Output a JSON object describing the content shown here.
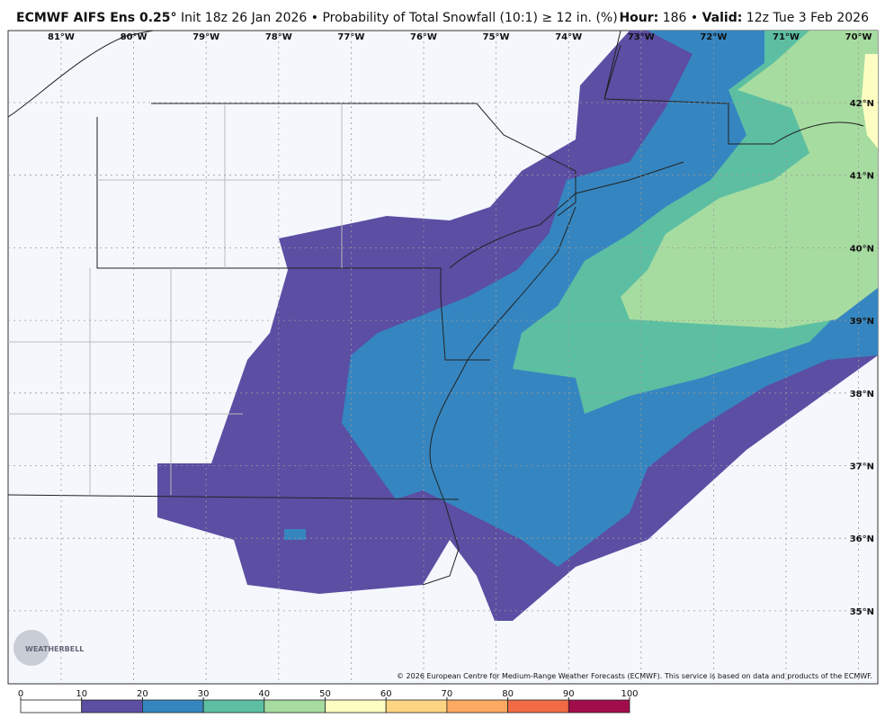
{
  "header": {
    "model": "ECMWF AIFS Ens 0.25°",
    "description": "Init 18z 26 Jan 2026 • Probability of Total Snowfall (10:1) ≥ 12 in. (%)",
    "hour_label": "Hour:",
    "hour": "186 •",
    "valid_label": "Valid:",
    "valid": "12z Tue 3 Feb 2026"
  },
  "map": {
    "longitudes": [
      "81°W",
      "80°W",
      "79°W",
      "78°W",
      "77°W",
      "76°W",
      "75°W",
      "74°W",
      "73°W",
      "72°W",
      "71°W",
      "70°W"
    ],
    "latitudes": [
      "42°N",
      "41°N",
      "40°N",
      "39°N",
      "38°N",
      "37°N",
      "36°N",
      "35°N"
    ],
    "logo": "WEATHERBELL",
    "credit": "© 2026 European Centre for Medium-Range Weather Forecasts (ECMWF). This service is based on data and products of the ECMWF."
  },
  "colorbar": {
    "ticks": [
      0,
      10,
      20,
      30,
      40,
      50,
      60,
      70,
      80,
      90,
      100
    ],
    "colors": [
      "#ffffff",
      "#5b4ea3",
      "#3586c0",
      "#5cbfa2",
      "#a7dca0",
      "#fdfdc2",
      "#fdd582",
      "#fca962",
      "#f26b45",
      "#a30c4a"
    ]
  }
}
